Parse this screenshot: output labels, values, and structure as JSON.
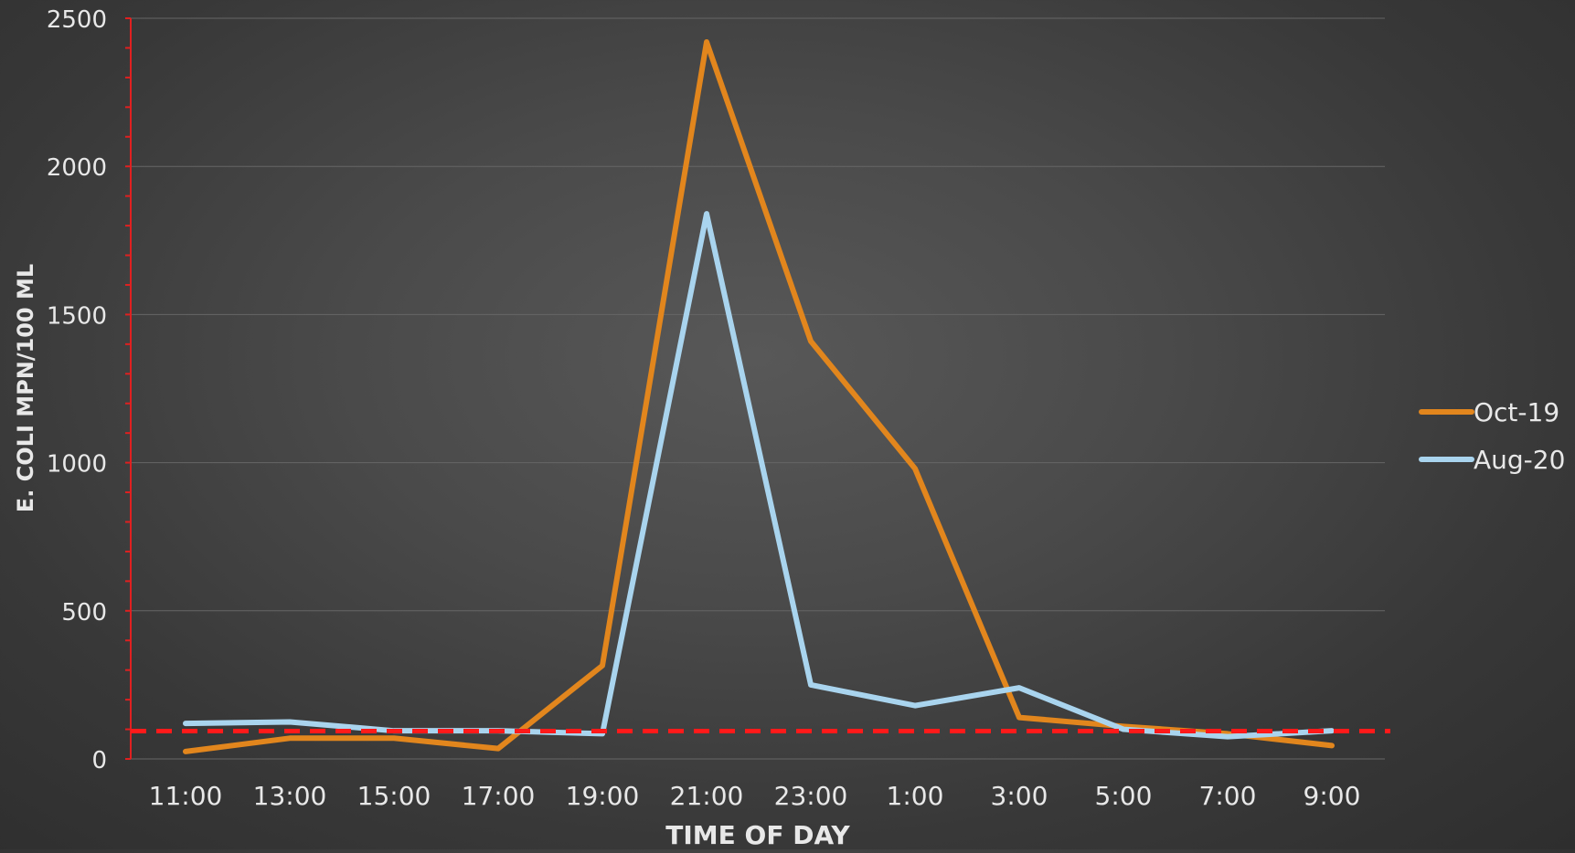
{
  "chart_data": {
    "type": "line",
    "title": "",
    "xlabel": "TIME OF DAY",
    "ylabel": "E. COLI MPN/100 ML",
    "categories": [
      "11:00",
      "13:00",
      "15:00",
      "17:00",
      "19:00",
      "21:00",
      "23:00",
      "1:00",
      "3:00",
      "5:00",
      "7:00",
      "9:00"
    ],
    "ylim": [
      0,
      2500
    ],
    "yticks": [
      0,
      500,
      1000,
      1500,
      2000,
      2500
    ],
    "grid": true,
    "legend_position": "right",
    "series": [
      {
        "name": "Oct-19",
        "color": "#e2861d",
        "values": [
          25,
          70,
          70,
          35,
          315,
          2420,
          1410,
          980,
          140,
          110,
          85,
          45
        ]
      },
      {
        "name": "Aug-20",
        "color": "#a9d4ee",
        "values": [
          120,
          125,
          95,
          95,
          85,
          1840,
          250,
          180,
          240,
          100,
          75,
          95
        ]
      }
    ],
    "reference_line": {
      "value": 94,
      "color": "#ff1a1a",
      "style": "dashed"
    },
    "colors": {
      "axis": "#e02020",
      "grid": "#666666",
      "text": "#e8e8e8"
    }
  }
}
